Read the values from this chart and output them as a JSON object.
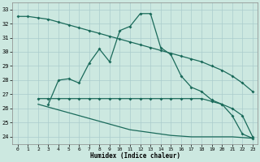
{
  "xlabel": "Humidex (Indice chaleur)",
  "background_color": "#cce8e0",
  "grid_color": "#aacccc",
  "line_color": "#1a6a5a",
  "xlim": [
    -0.5,
    23.5
  ],
  "ylim": [
    23.5,
    33.5
  ],
  "yticks": [
    24,
    25,
    26,
    27,
    28,
    29,
    30,
    31,
    32,
    33
  ],
  "xticks": [
    0,
    1,
    2,
    3,
    4,
    5,
    6,
    7,
    8,
    9,
    10,
    11,
    12,
    13,
    14,
    15,
    16,
    17,
    18,
    19,
    20,
    21,
    22,
    23
  ],
  "line1_x": [
    0,
    1,
    2,
    3,
    4,
    5,
    6,
    7,
    8,
    9,
    10,
    11,
    12,
    13,
    14,
    15,
    16,
    17,
    18,
    19,
    20,
    21,
    22,
    23
  ],
  "line1_y": [
    32.5,
    32.5,
    32.4,
    32.3,
    32.1,
    31.9,
    31.7,
    31.5,
    31.3,
    31.1,
    30.9,
    30.7,
    30.5,
    30.3,
    30.1,
    29.9,
    29.7,
    29.5,
    29.3,
    29.0,
    28.7,
    28.3,
    27.8,
    27.2
  ],
  "line2_x": [
    2,
    3,
    4,
    5,
    6,
    7,
    8,
    9,
    10,
    11,
    12,
    13,
    14,
    15,
    16,
    17,
    18,
    19,
    20,
    21,
    22,
    23
  ],
  "line2_y": [
    26.7,
    26.7,
    26.7,
    26.7,
    26.7,
    26.7,
    26.7,
    26.7,
    26.7,
    26.7,
    26.7,
    26.7,
    26.7,
    26.7,
    26.7,
    26.7,
    26.7,
    26.5,
    26.3,
    26.0,
    25.5,
    24.0
  ],
  "line3_x": [
    2,
    3,
    4,
    5,
    6,
    7,
    8,
    9,
    10,
    11,
    12,
    13,
    14,
    15,
    16,
    17,
    18,
    19,
    20,
    21,
    22,
    23
  ],
  "line3_y": [
    26.3,
    26.1,
    25.9,
    25.7,
    25.5,
    25.3,
    25.1,
    24.9,
    24.7,
    24.5,
    24.4,
    24.3,
    24.2,
    24.1,
    24.05,
    24.0,
    24.0,
    24.0,
    24.0,
    24.0,
    23.95,
    23.9
  ],
  "line4_x": [
    3,
    4,
    5,
    6,
    7,
    8,
    9,
    10,
    11,
    12,
    13,
    14,
    15,
    16,
    17,
    18,
    19,
    20,
    21,
    22,
    23
  ],
  "line4_y": [
    26.3,
    28.0,
    28.1,
    27.8,
    29.2,
    30.2,
    29.3,
    31.5,
    31.8,
    32.7,
    32.7,
    30.3,
    29.8,
    28.3,
    27.5,
    27.2,
    26.6,
    26.3,
    25.5,
    24.2,
    23.9
  ]
}
